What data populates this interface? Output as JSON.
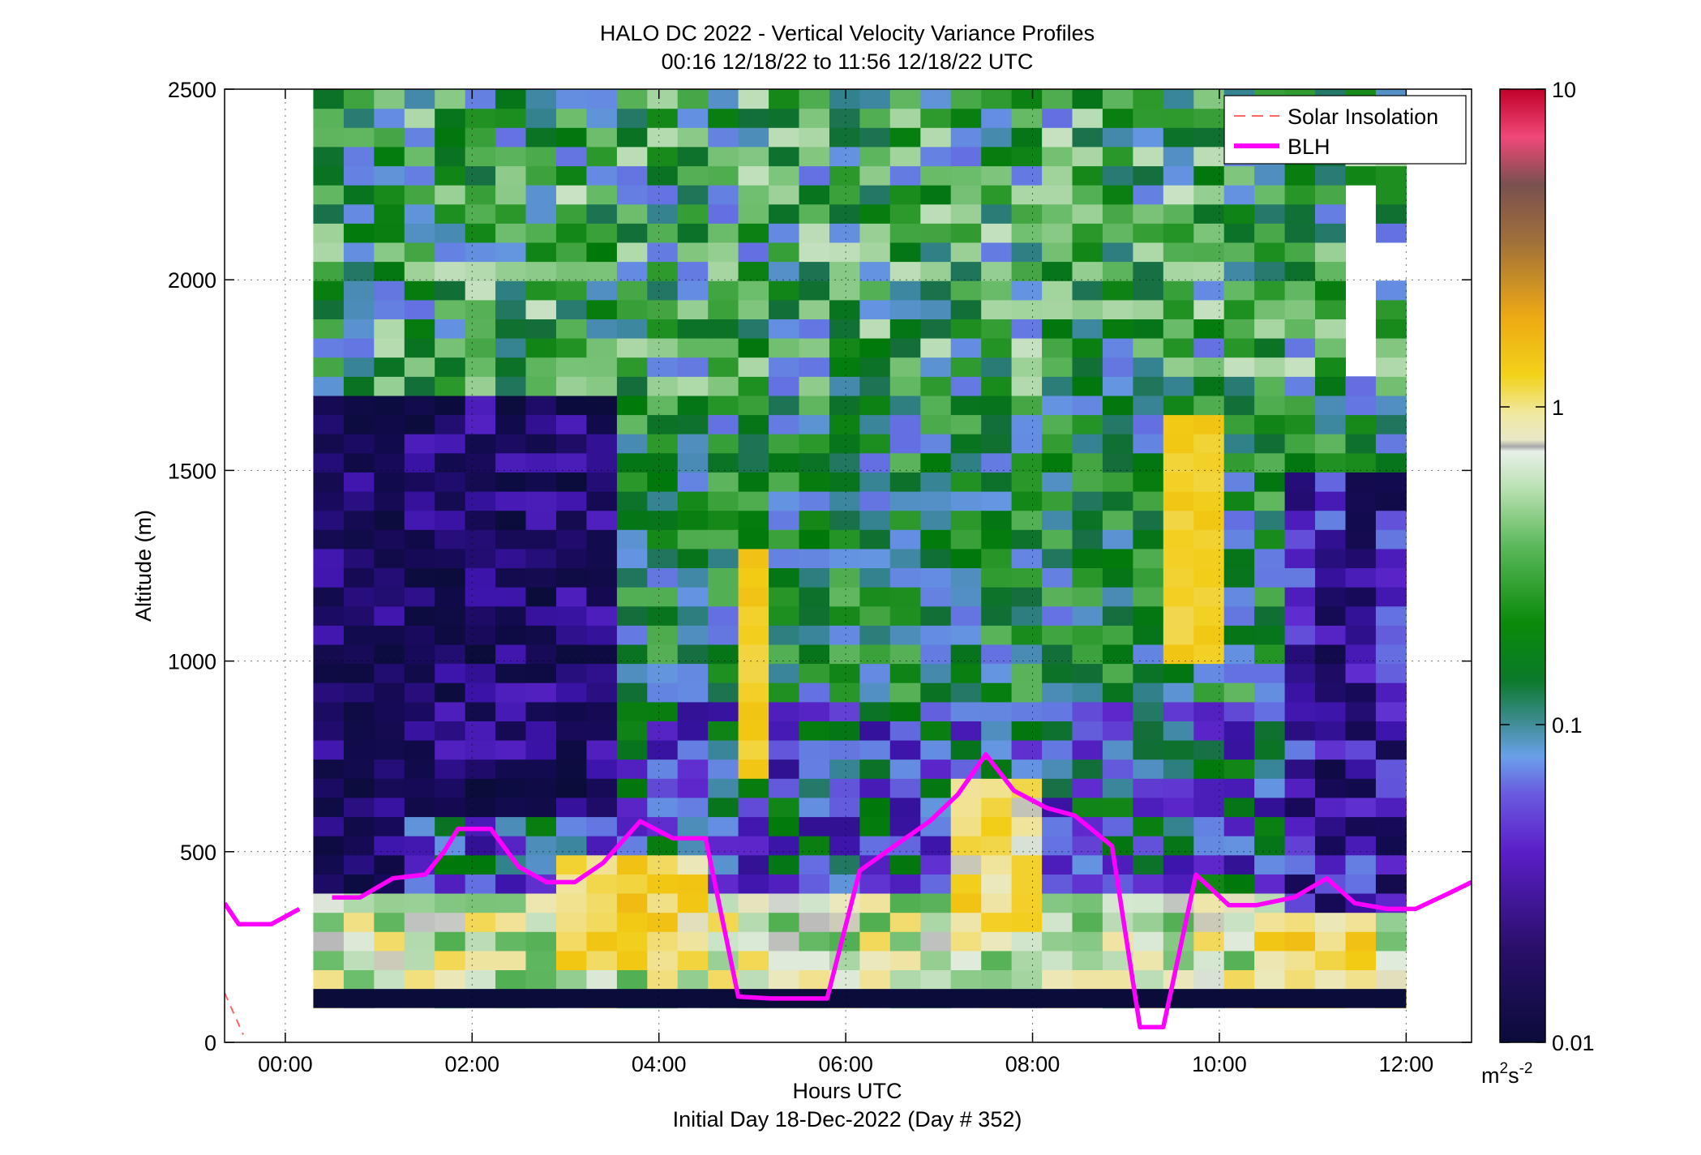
{
  "chart_data": {
    "type": "heatmap",
    "title": "HALO DC 2022 - Vertical Velocity Variance Profiles",
    "subtitle": "00:16 12/18/22 to 11:56 12/18/22  UTC",
    "xlabel": "Hours UTC",
    "xlabel2": "Initial Day 18-Dec-2022 (Day # 352)",
    "ylabel": "Altitude (m)",
    "x_range_hours": [
      -0.65,
      12.7
    ],
    "y_range_m": [
      0,
      2500
    ],
    "x_ticks": [
      0,
      2,
      4,
      6,
      8,
      10,
      12
    ],
    "x_tick_labels": [
      "00:00",
      "02:00",
      "04:00",
      "06:00",
      "08:00",
      "10:00",
      "12:00"
    ],
    "y_ticks": [
      0,
      500,
      1000,
      1500,
      2000,
      2500
    ],
    "y_tick_labels": [
      "0",
      "500",
      "1000",
      "1500",
      "2000",
      "2500"
    ],
    "grid": true,
    "legend_position": "top-right",
    "legend": [
      {
        "label": "Solar Insolation",
        "color": "#ff6666",
        "style": "dashed"
      },
      {
        "label": "BLH",
        "color": "#ff00ff",
        "style": "solid"
      }
    ],
    "colorbar": {
      "scale": "log",
      "range": [
        0.01,
        10
      ],
      "tick_labels": [
        "10",
        "1",
        "0.1",
        "0.01"
      ],
      "unit_base": "m",
      "unit_sup1": "2",
      "unit_mid": "s",
      "unit_sup2": "-2"
    },
    "heatmap": {
      "x_start_hours": 0.3,
      "x_end_hours": 12.0,
      "columns": 36,
      "y_start_m": 90,
      "y_end_m": 2500,
      "rows": 48,
      "lowest_row_m": [
        90,
        140
      ],
      "lowest_row_value": 0.01
    },
    "blh": {
      "hours": [
        -0.65,
        -0.5,
        -0.15,
        0.15,
        0.5,
        0.8,
        1.15,
        1.5,
        1.7,
        1.85,
        2.2,
        2.5,
        2.8,
        3.1,
        3.4,
        3.8,
        4.15,
        4.5,
        4.85,
        5.2,
        5.5,
        5.8,
        6.15,
        6.55,
        6.9,
        7.2,
        7.5,
        7.8,
        8.15,
        8.45,
        8.85,
        9.15,
        9.4,
        9.75,
        10.1,
        10.4,
        10.8,
        11.15,
        11.45,
        11.8,
        12.1,
        12.45,
        12.7
      ],
      "altitude_m": [
        365,
        310,
        310,
        350,
        380,
        380,
        430,
        440,
        500,
        560,
        560,
        460,
        420,
        420,
        470,
        580,
        535,
        535,
        120,
        115,
        115,
        115,
        450,
        520,
        580,
        650,
        755,
        660,
        615,
        595,
        515,
        40,
        40,
        440,
        360,
        360,
        380,
        430,
        365,
        350,
        350,
        390,
        420
      ]
    },
    "solar_insolation": {
      "hours": [
        -0.65,
        -0.45
      ],
      "altitude_m": [
        130,
        20
      ]
    }
  }
}
